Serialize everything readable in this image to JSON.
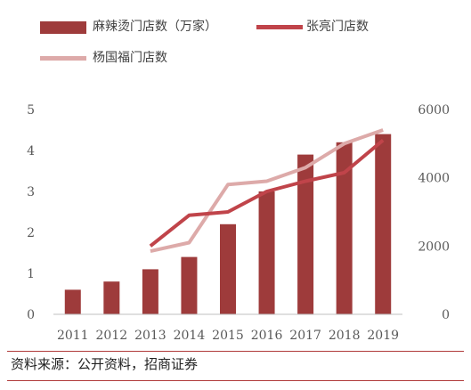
{
  "chart_data": {
    "type": "bar+line",
    "categories": [
      "2011",
      "2012",
      "2013",
      "2014",
      "2015",
      "2016",
      "2017",
      "2018",
      "2019"
    ],
    "bar_series": {
      "name": "麻辣烫门店数（万家）",
      "axis": "left",
      "color": "#9e3b3b",
      "values": [
        0.6,
        0.8,
        1.1,
        1.4,
        2.2,
        3.0,
        3.9,
        4.2,
        4.4
      ]
    },
    "line_series": [
      {
        "name": "张亮门店数",
        "axis": "right",
        "color": "#c0444a",
        "values": [
          null,
          null,
          2000,
          2900,
          3000,
          3600,
          3900,
          4150,
          5100
        ]
      },
      {
        "name": "杨国福门店数",
        "axis": "right",
        "color": "#ddaaa9",
        "values": [
          null,
          null,
          1850,
          2100,
          3800,
          3900,
          4300,
          5000,
          5400
        ]
      }
    ],
    "left_axis": {
      "ticks": [
        "0",
        "1",
        "2",
        "3",
        "4",
        "5"
      ],
      "ylim": [
        0,
        5
      ]
    },
    "right_axis": {
      "ticks": [
        "0",
        "2000",
        "4000",
        "6000"
      ],
      "ylim": [
        0,
        6000
      ]
    },
    "grid": false,
    "legend_position": "top-left"
  },
  "legend": {
    "bar_label": "麻辣烫门店数（万家）",
    "line1_label": "张亮门店数",
    "line2_label": "杨国福门店数"
  },
  "source_text": "资料来源：公开资料，招商证券"
}
